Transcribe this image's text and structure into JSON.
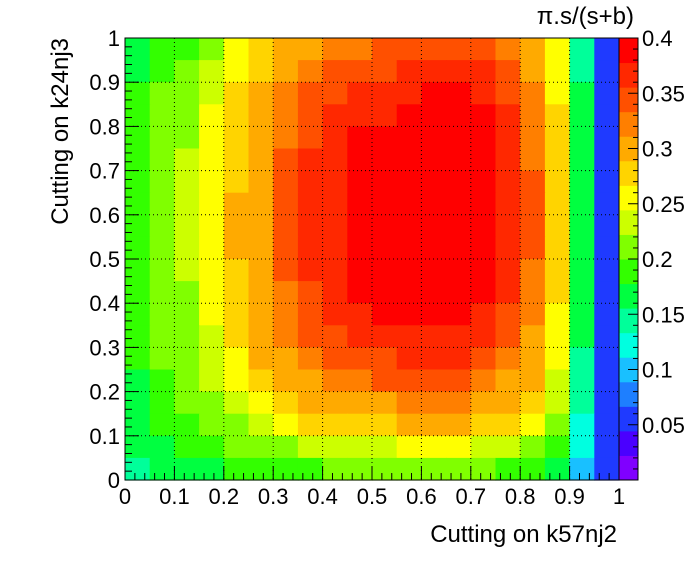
{
  "chart_data": {
    "type": "heatmap",
    "title": "",
    "xlabel": "Cutting on k57nj2",
    "ylabel": "Cutting on k24nj3",
    "zlabel": "π.s/(s+b)",
    "xlim": [
      0,
      1
    ],
    "ylim": [
      0,
      1
    ],
    "zlim": [
      0,
      0.4
    ],
    "x_ticks": [
      "0",
      "0.1",
      "0.2",
      "0.3",
      "0.4",
      "0.5",
      "0.6",
      "0.7",
      "0.8",
      "0.9",
      "1"
    ],
    "y_ticks": [
      "0",
      "0.1",
      "0.2",
      "0.3",
      "0.4",
      "0.5",
      "0.6",
      "0.7",
      "0.8",
      "0.9",
      "1"
    ],
    "z_ticks": [
      "0.05",
      "0.1",
      "0.15",
      "0.2",
      "0.25",
      "0.3",
      "0.35",
      "0.4"
    ],
    "grid": true,
    "colormap": "rainbow (violet-blue-cyan-green-yellow-orange-red)",
    "x_bin_centers": [
      0.025,
      0.075,
      0.125,
      0.175,
      0.225,
      0.275,
      0.325,
      0.375,
      0.425,
      0.475,
      0.525,
      0.575,
      0.625,
      0.675,
      0.725,
      0.775,
      0.825,
      0.875,
      0.925,
      0.975
    ],
    "y_bin_centers": [
      0.975,
      0.925,
      0.875,
      0.825,
      0.775,
      0.725,
      0.675,
      0.625,
      0.575,
      0.525,
      0.475,
      0.425,
      0.375,
      0.325,
      0.275,
      0.225,
      0.175,
      0.125,
      0.075,
      0.025
    ],
    "z": [
      [
        0.16,
        0.18,
        0.19,
        0.22,
        0.25,
        0.27,
        0.29,
        0.31,
        0.32,
        0.32,
        0.34,
        0.35,
        0.34,
        0.34,
        0.34,
        0.32,
        0.29,
        0.25,
        0.15,
        0.06
      ],
      [
        0.17,
        0.19,
        0.2,
        0.23,
        0.26,
        0.28,
        0.31,
        0.33,
        0.34,
        0.34,
        0.35,
        0.36,
        0.36,
        0.36,
        0.36,
        0.34,
        0.31,
        0.26,
        0.15,
        0.06
      ],
      [
        0.18,
        0.2,
        0.21,
        0.24,
        0.27,
        0.29,
        0.32,
        0.34,
        0.35,
        0.36,
        0.37,
        0.37,
        0.38,
        0.38,
        0.37,
        0.35,
        0.32,
        0.26,
        0.16,
        0.06
      ],
      [
        0.18,
        0.2,
        0.22,
        0.25,
        0.27,
        0.3,
        0.33,
        0.35,
        0.36,
        0.37,
        0.37,
        0.38,
        0.39,
        0.39,
        0.38,
        0.36,
        0.33,
        0.27,
        0.16,
        0.06
      ],
      [
        0.19,
        0.21,
        0.22,
        0.25,
        0.28,
        0.31,
        0.33,
        0.35,
        0.37,
        0.38,
        0.38,
        0.39,
        0.39,
        0.39,
        0.39,
        0.37,
        0.33,
        0.27,
        0.16,
        0.06
      ],
      [
        0.19,
        0.21,
        0.23,
        0.25,
        0.28,
        0.31,
        0.34,
        0.36,
        0.37,
        0.38,
        0.39,
        0.39,
        0.4,
        0.4,
        0.39,
        0.37,
        0.33,
        0.27,
        0.16,
        0.06
      ],
      [
        0.19,
        0.21,
        0.23,
        0.26,
        0.28,
        0.31,
        0.34,
        0.36,
        0.37,
        0.38,
        0.39,
        0.4,
        0.4,
        0.4,
        0.39,
        0.37,
        0.34,
        0.27,
        0.16,
        0.06
      ],
      [
        0.19,
        0.21,
        0.23,
        0.26,
        0.29,
        0.31,
        0.34,
        0.36,
        0.37,
        0.38,
        0.39,
        0.4,
        0.4,
        0.4,
        0.39,
        0.37,
        0.34,
        0.27,
        0.16,
        0.06
      ],
      [
        0.19,
        0.21,
        0.23,
        0.26,
        0.29,
        0.31,
        0.34,
        0.36,
        0.37,
        0.38,
        0.39,
        0.4,
        0.4,
        0.4,
        0.39,
        0.37,
        0.34,
        0.27,
        0.16,
        0.06
      ],
      [
        0.19,
        0.21,
        0.23,
        0.26,
        0.29,
        0.31,
        0.34,
        0.36,
        0.37,
        0.38,
        0.39,
        0.4,
        0.4,
        0.4,
        0.39,
        0.37,
        0.34,
        0.27,
        0.16,
        0.06
      ],
      [
        0.19,
        0.21,
        0.23,
        0.25,
        0.28,
        0.31,
        0.34,
        0.36,
        0.37,
        0.38,
        0.39,
        0.4,
        0.4,
        0.39,
        0.39,
        0.37,
        0.33,
        0.27,
        0.16,
        0.06
      ],
      [
        0.19,
        0.21,
        0.22,
        0.25,
        0.28,
        0.31,
        0.33,
        0.35,
        0.37,
        0.38,
        0.39,
        0.39,
        0.39,
        0.39,
        0.38,
        0.36,
        0.33,
        0.27,
        0.16,
        0.06
      ],
      [
        0.19,
        0.2,
        0.22,
        0.25,
        0.27,
        0.3,
        0.33,
        0.35,
        0.36,
        0.37,
        0.38,
        0.38,
        0.38,
        0.38,
        0.37,
        0.35,
        0.32,
        0.26,
        0.16,
        0.06
      ],
      [
        0.18,
        0.2,
        0.22,
        0.24,
        0.27,
        0.29,
        0.32,
        0.34,
        0.35,
        0.36,
        0.37,
        0.37,
        0.37,
        0.37,
        0.36,
        0.34,
        0.31,
        0.26,
        0.16,
        0.06
      ],
      [
        0.18,
        0.2,
        0.21,
        0.24,
        0.26,
        0.29,
        0.31,
        0.33,
        0.34,
        0.35,
        0.35,
        0.36,
        0.36,
        0.36,
        0.35,
        0.33,
        0.3,
        0.25,
        0.15,
        0.06
      ],
      [
        0.17,
        0.19,
        0.21,
        0.23,
        0.25,
        0.27,
        0.3,
        0.31,
        0.32,
        0.33,
        0.34,
        0.34,
        0.34,
        0.34,
        0.33,
        0.31,
        0.29,
        0.24,
        0.15,
        0.06
      ],
      [
        0.17,
        0.18,
        0.2,
        0.22,
        0.24,
        0.26,
        0.28,
        0.29,
        0.3,
        0.31,
        0.31,
        0.32,
        0.32,
        0.32,
        0.31,
        0.29,
        0.27,
        0.23,
        0.14,
        0.06
      ],
      [
        0.16,
        0.18,
        0.19,
        0.21,
        0.22,
        0.24,
        0.25,
        0.27,
        0.27,
        0.28,
        0.28,
        0.29,
        0.29,
        0.29,
        0.28,
        0.27,
        0.25,
        0.21,
        0.13,
        0.06
      ],
      [
        0.16,
        0.17,
        0.18,
        0.19,
        0.2,
        0.21,
        0.22,
        0.23,
        0.24,
        0.24,
        0.24,
        0.25,
        0.25,
        0.25,
        0.24,
        0.23,
        0.21,
        0.19,
        0.12,
        0.05
      ],
      [
        0.15,
        0.16,
        0.16,
        0.17,
        0.18,
        0.18,
        0.19,
        0.19,
        0.2,
        0.2,
        0.2,
        0.2,
        0.2,
        0.2,
        0.2,
        0.19,
        0.18,
        0.16,
        0.11,
        0.05
      ]
    ],
    "palette": [
      "#8000ff",
      "#4a00ff",
      "#1f3aff",
      "#1e7fff",
      "#19c0ff",
      "#00ffe0",
      "#00ff9a",
      "#00ff40",
      "#33ff00",
      "#80ff00",
      "#ccff00",
      "#ffff00",
      "#ffd400",
      "#ffaa00",
      "#ff7f00",
      "#ff5000",
      "#ff2800",
      "#ff0000"
    ]
  }
}
